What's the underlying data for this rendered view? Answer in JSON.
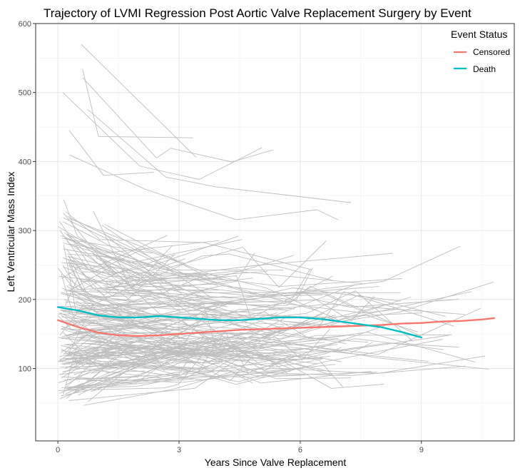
{
  "chart_data": {
    "type": "line",
    "title": "Trajectory of LVMI Regression Post Aortic Valve Replacement Surgery by Event",
    "xlabel": "Years Since Valve Replacement",
    "ylabel": "Left Ventricular Mass Index",
    "xlim": [
      -0.55,
      11.3
    ],
    "ylim": [
      -5,
      600
    ],
    "x_ticks": [
      0,
      3,
      6,
      9
    ],
    "y_ticks": [
      100,
      200,
      300,
      400,
      500,
      600
    ],
    "grid": true,
    "legend": {
      "title": "Event Status",
      "placement": "top-right",
      "entries": [
        {
          "label": "Censored",
          "color": "#F8766D"
        },
        {
          "label": "Death",
          "color": "#00BFC4"
        }
      ]
    },
    "series": [
      {
        "name": "Censored",
        "color": "#F8766D",
        "x": [
          0,
          0.5,
          1,
          1.5,
          2,
          2.5,
          3,
          3.5,
          4,
          4.5,
          5,
          5.5,
          6,
          6.5,
          7,
          7.5,
          8,
          8.5,
          9,
          9.5,
          10,
          10.5,
          10.8
        ],
        "y": [
          170,
          160,
          152,
          148,
          147,
          148,
          150,
          152,
          154,
          156,
          157,
          158,
          159,
          160,
          161,
          162,
          163,
          165,
          166,
          168,
          169,
          171,
          173
        ]
      },
      {
        "name": "Death",
        "color": "#00BFC4",
        "x": [
          0,
          0.5,
          1,
          1.5,
          2,
          2.5,
          3,
          3.5,
          4,
          4.5,
          5,
          5.5,
          6,
          6.5,
          7,
          7.5,
          8,
          8.5,
          9
        ],
        "y": [
          189,
          184,
          177,
          174,
          174,
          176,
          174,
          172,
          170,
          170,
          172,
          174,
          174,
          172,
          168,
          164,
          160,
          153,
          145
        ]
      }
    ],
    "individual_trajectories_color": "#BEBEBE"
  }
}
